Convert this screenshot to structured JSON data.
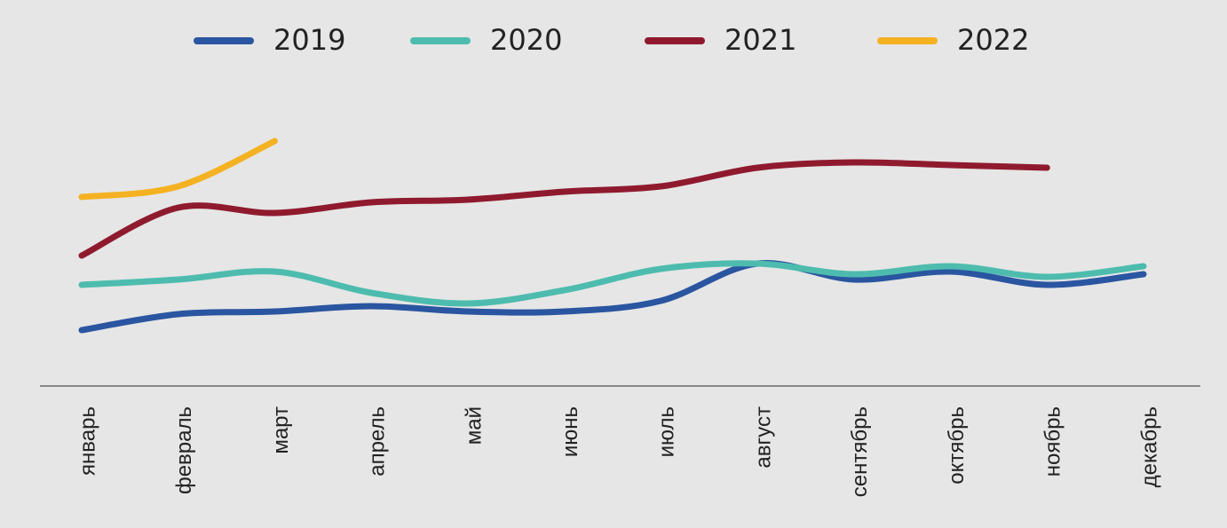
{
  "chart_data": {
    "type": "line",
    "categories": [
      "январь",
      "февраль",
      "март",
      "апрель",
      "май",
      "июнь",
      "июль",
      "август",
      "сентябрь",
      "октябрь",
      "ноябрь",
      "декабрь"
    ],
    "series": [
      {
        "name": "2019",
        "color": "#2a55a0",
        "values": [
          21,
          27,
          28,
          30,
          28,
          28,
          32,
          46,
          40,
          43,
          38,
          42
        ]
      },
      {
        "name": "2020",
        "color": "#4dbcae",
        "values": [
          38,
          40,
          43,
          35,
          31,
          36,
          44,
          46,
          42,
          45,
          41,
          45
        ]
      },
      {
        "name": "2021",
        "color": "#8f1a2e",
        "values": [
          49,
          67,
          65,
          69,
          70,
          73,
          75,
          82,
          84,
          83,
          82,
          null
        ]
      },
      {
        "name": "2022",
        "color": "#f4b223",
        "values": [
          71,
          75,
          92,
          null,
          null,
          null,
          null,
          null,
          null,
          null,
          null,
          null
        ]
      }
    ],
    "ylim": [
      0,
      100
    ]
  }
}
